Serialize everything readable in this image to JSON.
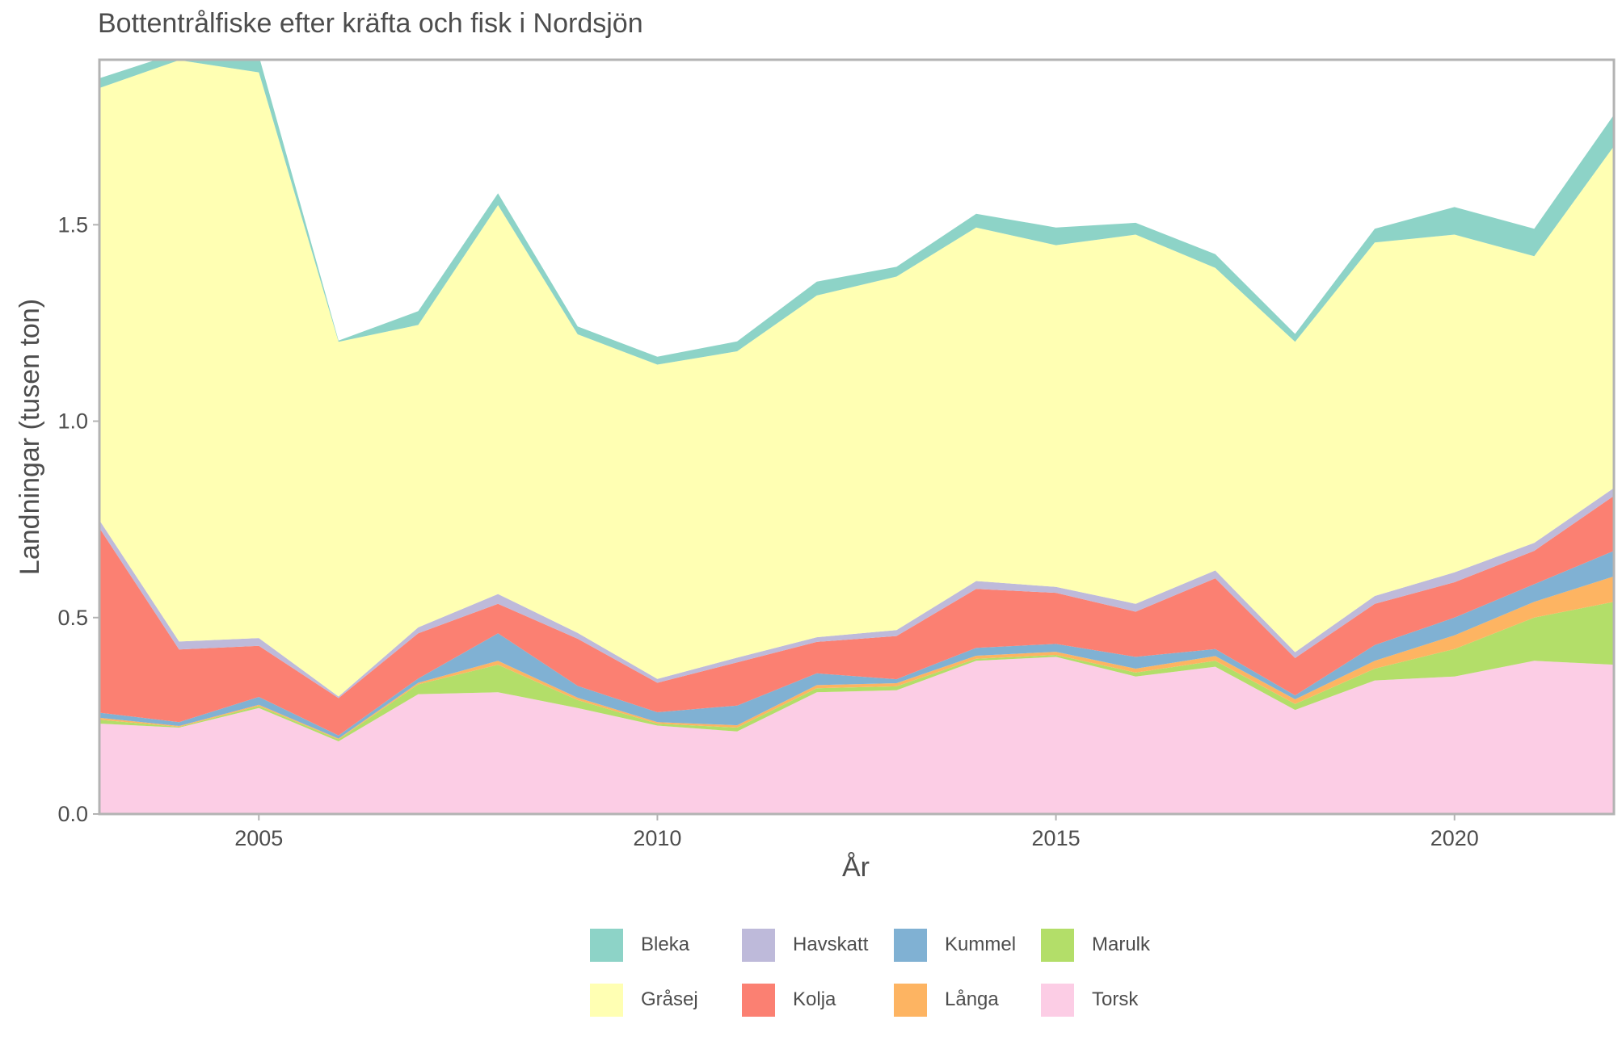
{
  "chart_data": {
    "type": "area",
    "stacked": true,
    "title": "Bottentrålfiske efter kräfta och fisk i Nordsjön",
    "xlabel": "År",
    "ylabel": "Landningar (tusen ton)",
    "xlim": [
      2003,
      2022
    ],
    "ylim": [
      0,
      1.92
    ],
    "xticks": [
      2005,
      2010,
      2015,
      2020
    ],
    "yticks": [
      "0.0",
      "0.5",
      "1.0",
      "1.5"
    ],
    "grid": false,
    "legend_position": "bottom",
    "x": [
      2003,
      2004,
      2005,
      2006,
      2007,
      2008,
      2009,
      2010,
      2011,
      2012,
      2013,
      2014,
      2015,
      2016,
      2017,
      2018,
      2019,
      2020,
      2021,
      2022
    ],
    "series": [
      {
        "name": "Torsk",
        "color": "#FCCDE5",
        "values": [
          0.23,
          0.22,
          0.27,
          0.185,
          0.305,
          0.31,
          0.27,
          0.225,
          0.21,
          0.31,
          0.315,
          0.39,
          0.4,
          0.35,
          0.375,
          0.265,
          0.34,
          0.35,
          0.39,
          0.38
        ]
      },
      {
        "name": "Marulk",
        "color": "#B3DE69",
        "values": [
          0.01,
          0.002,
          0.005,
          0.005,
          0.025,
          0.07,
          0.02,
          0.005,
          0.01,
          0.01,
          0.01,
          0.005,
          0.005,
          0.01,
          0.015,
          0.015,
          0.03,
          0.07,
          0.11,
          0.16
        ]
      },
      {
        "name": "Långa",
        "color": "#FDB462",
        "values": [
          0.005,
          0.002,
          0.003,
          0.002,
          0.004,
          0.01,
          0.006,
          0.004,
          0.006,
          0.008,
          0.008,
          0.008,
          0.008,
          0.01,
          0.012,
          0.012,
          0.02,
          0.035,
          0.04,
          0.065
        ]
      },
      {
        "name": "Kummel",
        "color": "#80B1D3",
        "values": [
          0.013,
          0.01,
          0.02,
          0.008,
          0.011,
          0.07,
          0.03,
          0.025,
          0.05,
          0.03,
          0.01,
          0.02,
          0.02,
          0.03,
          0.018,
          0.01,
          0.04,
          0.045,
          0.045,
          0.065
        ]
      },
      {
        "name": "Kolja",
        "color": "#FB8072",
        "values": [
          0.47,
          0.185,
          0.13,
          0.095,
          0.115,
          0.075,
          0.12,
          0.075,
          0.11,
          0.08,
          0.11,
          0.15,
          0.13,
          0.115,
          0.18,
          0.095,
          0.105,
          0.09,
          0.085,
          0.14
        ]
      },
      {
        "name": "Havskatt",
        "color": "#BEBADA",
        "values": [
          0.02,
          0.02,
          0.02,
          0.004,
          0.015,
          0.025,
          0.015,
          0.01,
          0.012,
          0.012,
          0.015,
          0.02,
          0.015,
          0.02,
          0.02,
          0.015,
          0.02,
          0.025,
          0.02,
          0.02
        ]
      },
      {
        "name": "Gråsej",
        "color": "#FFFFB3",
        "values": [
          1.1,
          1.48,
          1.44,
          0.903,
          0.77,
          0.99,
          0.76,
          0.8,
          0.78,
          0.87,
          0.9,
          0.9,
          0.87,
          0.94,
          0.77,
          0.79,
          0.9,
          0.86,
          0.73,
          0.87
        ]
      },
      {
        "name": "Bleka",
        "color": "#8DD3C7",
        "values": [
          0.025,
          0.02,
          0.042,
          0.003,
          0.035,
          0.03,
          0.02,
          0.02,
          0.025,
          0.035,
          0.025,
          0.035,
          0.045,
          0.03,
          0.035,
          0.02,
          0.035,
          0.07,
          0.07,
          0.08
        ]
      }
    ]
  },
  "legend": {
    "items": [
      {
        "label": "Bleka",
        "color": "#8DD3C7"
      },
      {
        "label": "Havskatt",
        "color": "#BEBADA"
      },
      {
        "label": "Kummel",
        "color": "#80B1D3"
      },
      {
        "label": "Marulk",
        "color": "#B3DE69"
      },
      {
        "label": "Gråsej",
        "color": "#FFFFB3"
      },
      {
        "label": "Kolja",
        "color": "#FB8072"
      },
      {
        "label": "Långa",
        "color": "#FDB462"
      },
      {
        "label": "Torsk",
        "color": "#FCCDE5"
      }
    ]
  }
}
